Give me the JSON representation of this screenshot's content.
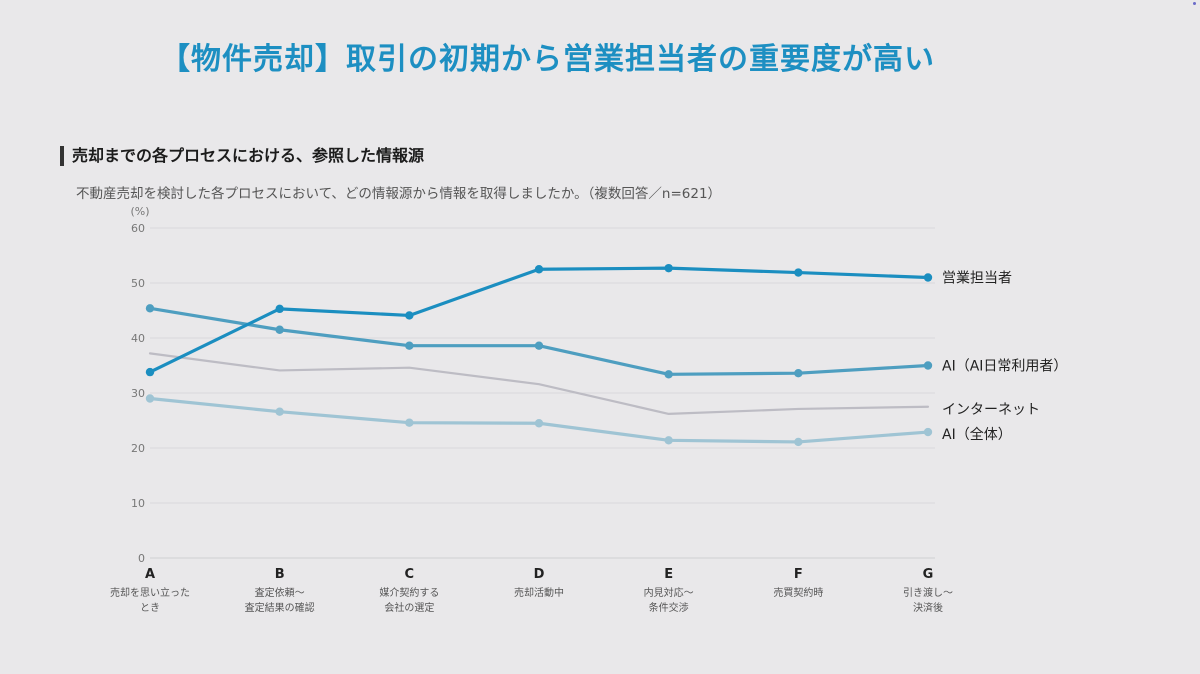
{
  "page": {
    "title": "【物件売却】取引の初期から営業担当者の重要度が高い",
    "section_heading": "売却までの各プロセスにおける、参照した情報源",
    "question": "不動産売却を検討した各プロセスにおいて、どの情報源から情報を取得しましたか。（複数回答／n=621）"
  },
  "chart_data": {
    "type": "line",
    "y_unit": "(%)",
    "ylim": [
      0,
      60
    ],
    "yticks": [
      0,
      10,
      20,
      30,
      40,
      50,
      60
    ],
    "grid": true,
    "categories": [
      "A",
      "B",
      "C",
      "D",
      "E",
      "F",
      "G"
    ],
    "category_sublabels": [
      [
        "売却を思い立った",
        "とき"
      ],
      [
        "査定依頼～",
        "査定結果の確認"
      ],
      [
        "媒介契約する",
        "会社の選定"
      ],
      [
        "売却活動中"
      ],
      [
        "内見対応～",
        "条件交渉"
      ],
      [
        "売買契約時"
      ],
      [
        "引き渡し～",
        "決済後"
      ]
    ],
    "series": [
      {
        "name": "営業担当者",
        "color": "#1b8ec0",
        "width": 3.2,
        "markers": true,
        "values": [
          33.8,
          45.3,
          44.1,
          52.5,
          52.7,
          51.9,
          51.0
        ]
      },
      {
        "name": "AI（AI日常利用者）",
        "color": "#4e9ec0",
        "width": 3.2,
        "markers": true,
        "values": [
          45.4,
          41.5,
          38.6,
          38.6,
          33.4,
          33.6,
          35.0
        ]
      },
      {
        "name": "インターネット",
        "color": "#bdbcc4",
        "width": 2.2,
        "markers": false,
        "values": [
          37.2,
          34.1,
          34.6,
          31.6,
          26.2,
          27.1,
          27.5
        ]
      },
      {
        "name": "AI（全体）",
        "color": "#9fc4d4",
        "width": 3.2,
        "markers": true,
        "values": [
          29.0,
          26.6,
          24.6,
          24.5,
          21.4,
          21.1,
          22.9
        ]
      }
    ]
  }
}
